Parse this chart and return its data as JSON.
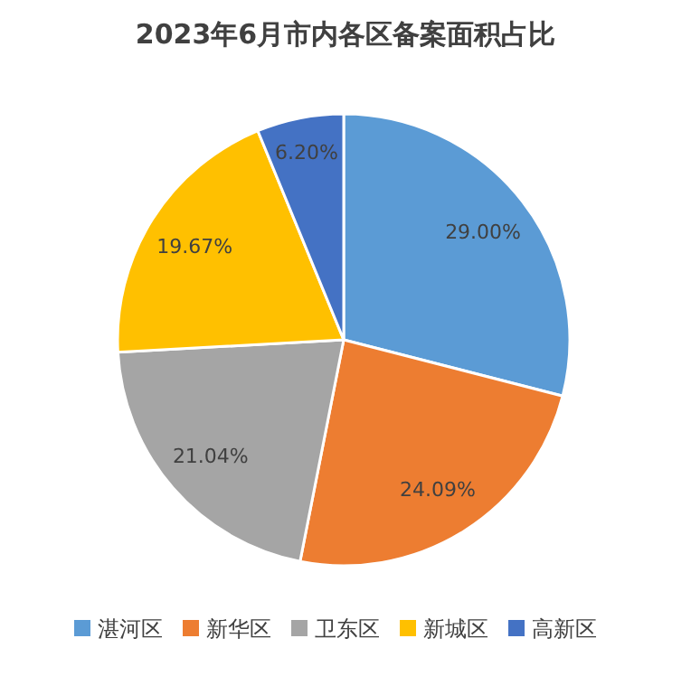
{
  "chart_data": {
    "type": "pie",
    "title": "2023年6月市内各区备案面积占比",
    "categories": [
      "湛河区",
      "新华区",
      "卫东区",
      "新城区",
      "高新区"
    ],
    "values": [
      29.0,
      24.09,
      21.04,
      19.67,
      6.2
    ],
    "colors": [
      "#5b9bd5",
      "#ed7d31",
      "#a5a5a5",
      "#ffc000",
      "#4472c4"
    ],
    "value_labels": [
      "29.00%",
      "24.09%",
      "21.04%",
      "19.67%",
      "6.20%"
    ],
    "legend": "bottom"
  }
}
